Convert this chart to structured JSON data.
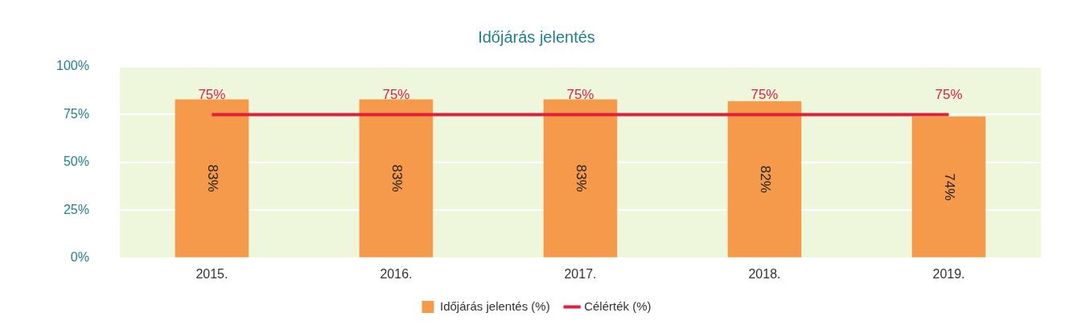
{
  "chart_data": {
    "type": "bar",
    "title": "Időjárás jelentés",
    "categories": [
      "2015.",
      "2016.",
      "2017.",
      "2018.",
      "2019."
    ],
    "series": [
      {
        "name": "Időjárás jelentés (%)",
        "color": "#f59a4a",
        "values": [
          83,
          83,
          83,
          82,
          74
        ],
        "value_labels": [
          "83%",
          "83%",
          "83%",
          "82%",
          "74%"
        ]
      },
      {
        "name": "Célérték (%)",
        "type": "line",
        "color": "#e01f3d",
        "values": [
          75,
          75,
          75,
          75,
          75
        ],
        "value_labels": [
          "75%",
          "75%",
          "75%",
          "75%",
          "75%"
        ]
      }
    ],
    "ylim": [
      0,
      100
    ],
    "yticks": [
      {
        "value": 0,
        "label": "0%"
      },
      {
        "value": 25,
        "label": "25%"
      },
      {
        "value": 50,
        "label": "50%"
      },
      {
        "value": 75,
        "label": "75%"
      },
      {
        "value": 100,
        "label": "100%"
      }
    ],
    "grid": "y",
    "legend": "bottom",
    "marker": "none"
  }
}
